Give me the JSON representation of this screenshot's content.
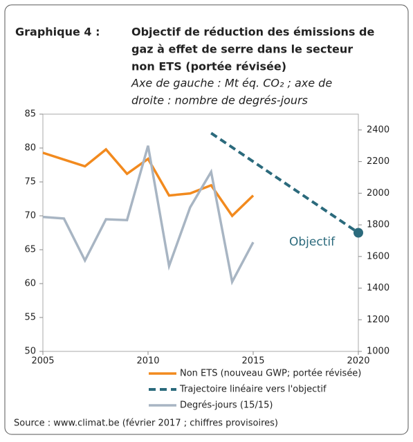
{
  "chart_data": {
    "type": "line",
    "label": "Graphique 4 :",
    "title": [
      "Objectif de réduction des émissions de",
      "gaz à effet de serre dans le secteur",
      "non ETS (portée révisée)"
    ],
    "subtitle": [
      "Axe de gauche : Mt éq. CO₂ ; axe de",
      "droite : nombre de degrés-jours"
    ],
    "xlim": [
      2005,
      2020
    ],
    "xticks": [
      2005,
      2010,
      2015,
      2020
    ],
    "ylim": [
      50,
      85
    ],
    "yticks": [
      50,
      55,
      60,
      65,
      70,
      75,
      80,
      85
    ],
    "y2lim": [
      1000,
      2500
    ],
    "y2ticks": [
      1000,
      1200,
      1400,
      1600,
      1800,
      2000,
      2200,
      2400
    ],
    "series": [
      {
        "name": "Non ETS (nouveau GWP; portée révisée)",
        "color": "#f28a1e",
        "dash": false,
        "x": [
          2005,
          2006,
          2007,
          2008,
          2009,
          2010,
          2011,
          2012,
          2013,
          2014,
          2015
        ],
        "values": [
          79.3,
          78.3,
          77.3,
          79.8,
          76.2,
          78.4,
          73.0,
          73.3,
          74.5,
          70.0,
          73.0
        ]
      },
      {
        "name": "Trajectoire linéaire vers l'objectif",
        "color": "#2b6a7c",
        "dash": true,
        "x": [
          2013,
          2020
        ],
        "values": [
          82.2,
          67.5
        ]
      },
      {
        "name": "Degrés-jours (15/15)",
        "color": "#a8b5c3",
        "dash": false,
        "axis": "y2",
        "x": [
          2005,
          2006,
          2007,
          2008,
          2009,
          2010,
          2011,
          2012,
          2013,
          2014,
          2015
        ],
        "values": [
          1850,
          1840,
          1575,
          1835,
          1830,
          2300,
          1540,
          1910,
          2135,
          1440,
          1690
        ]
      }
    ],
    "annotation": "Objectif",
    "source": "Source : www.climat.be (février 2017 ; chiffres provisoires)"
  }
}
